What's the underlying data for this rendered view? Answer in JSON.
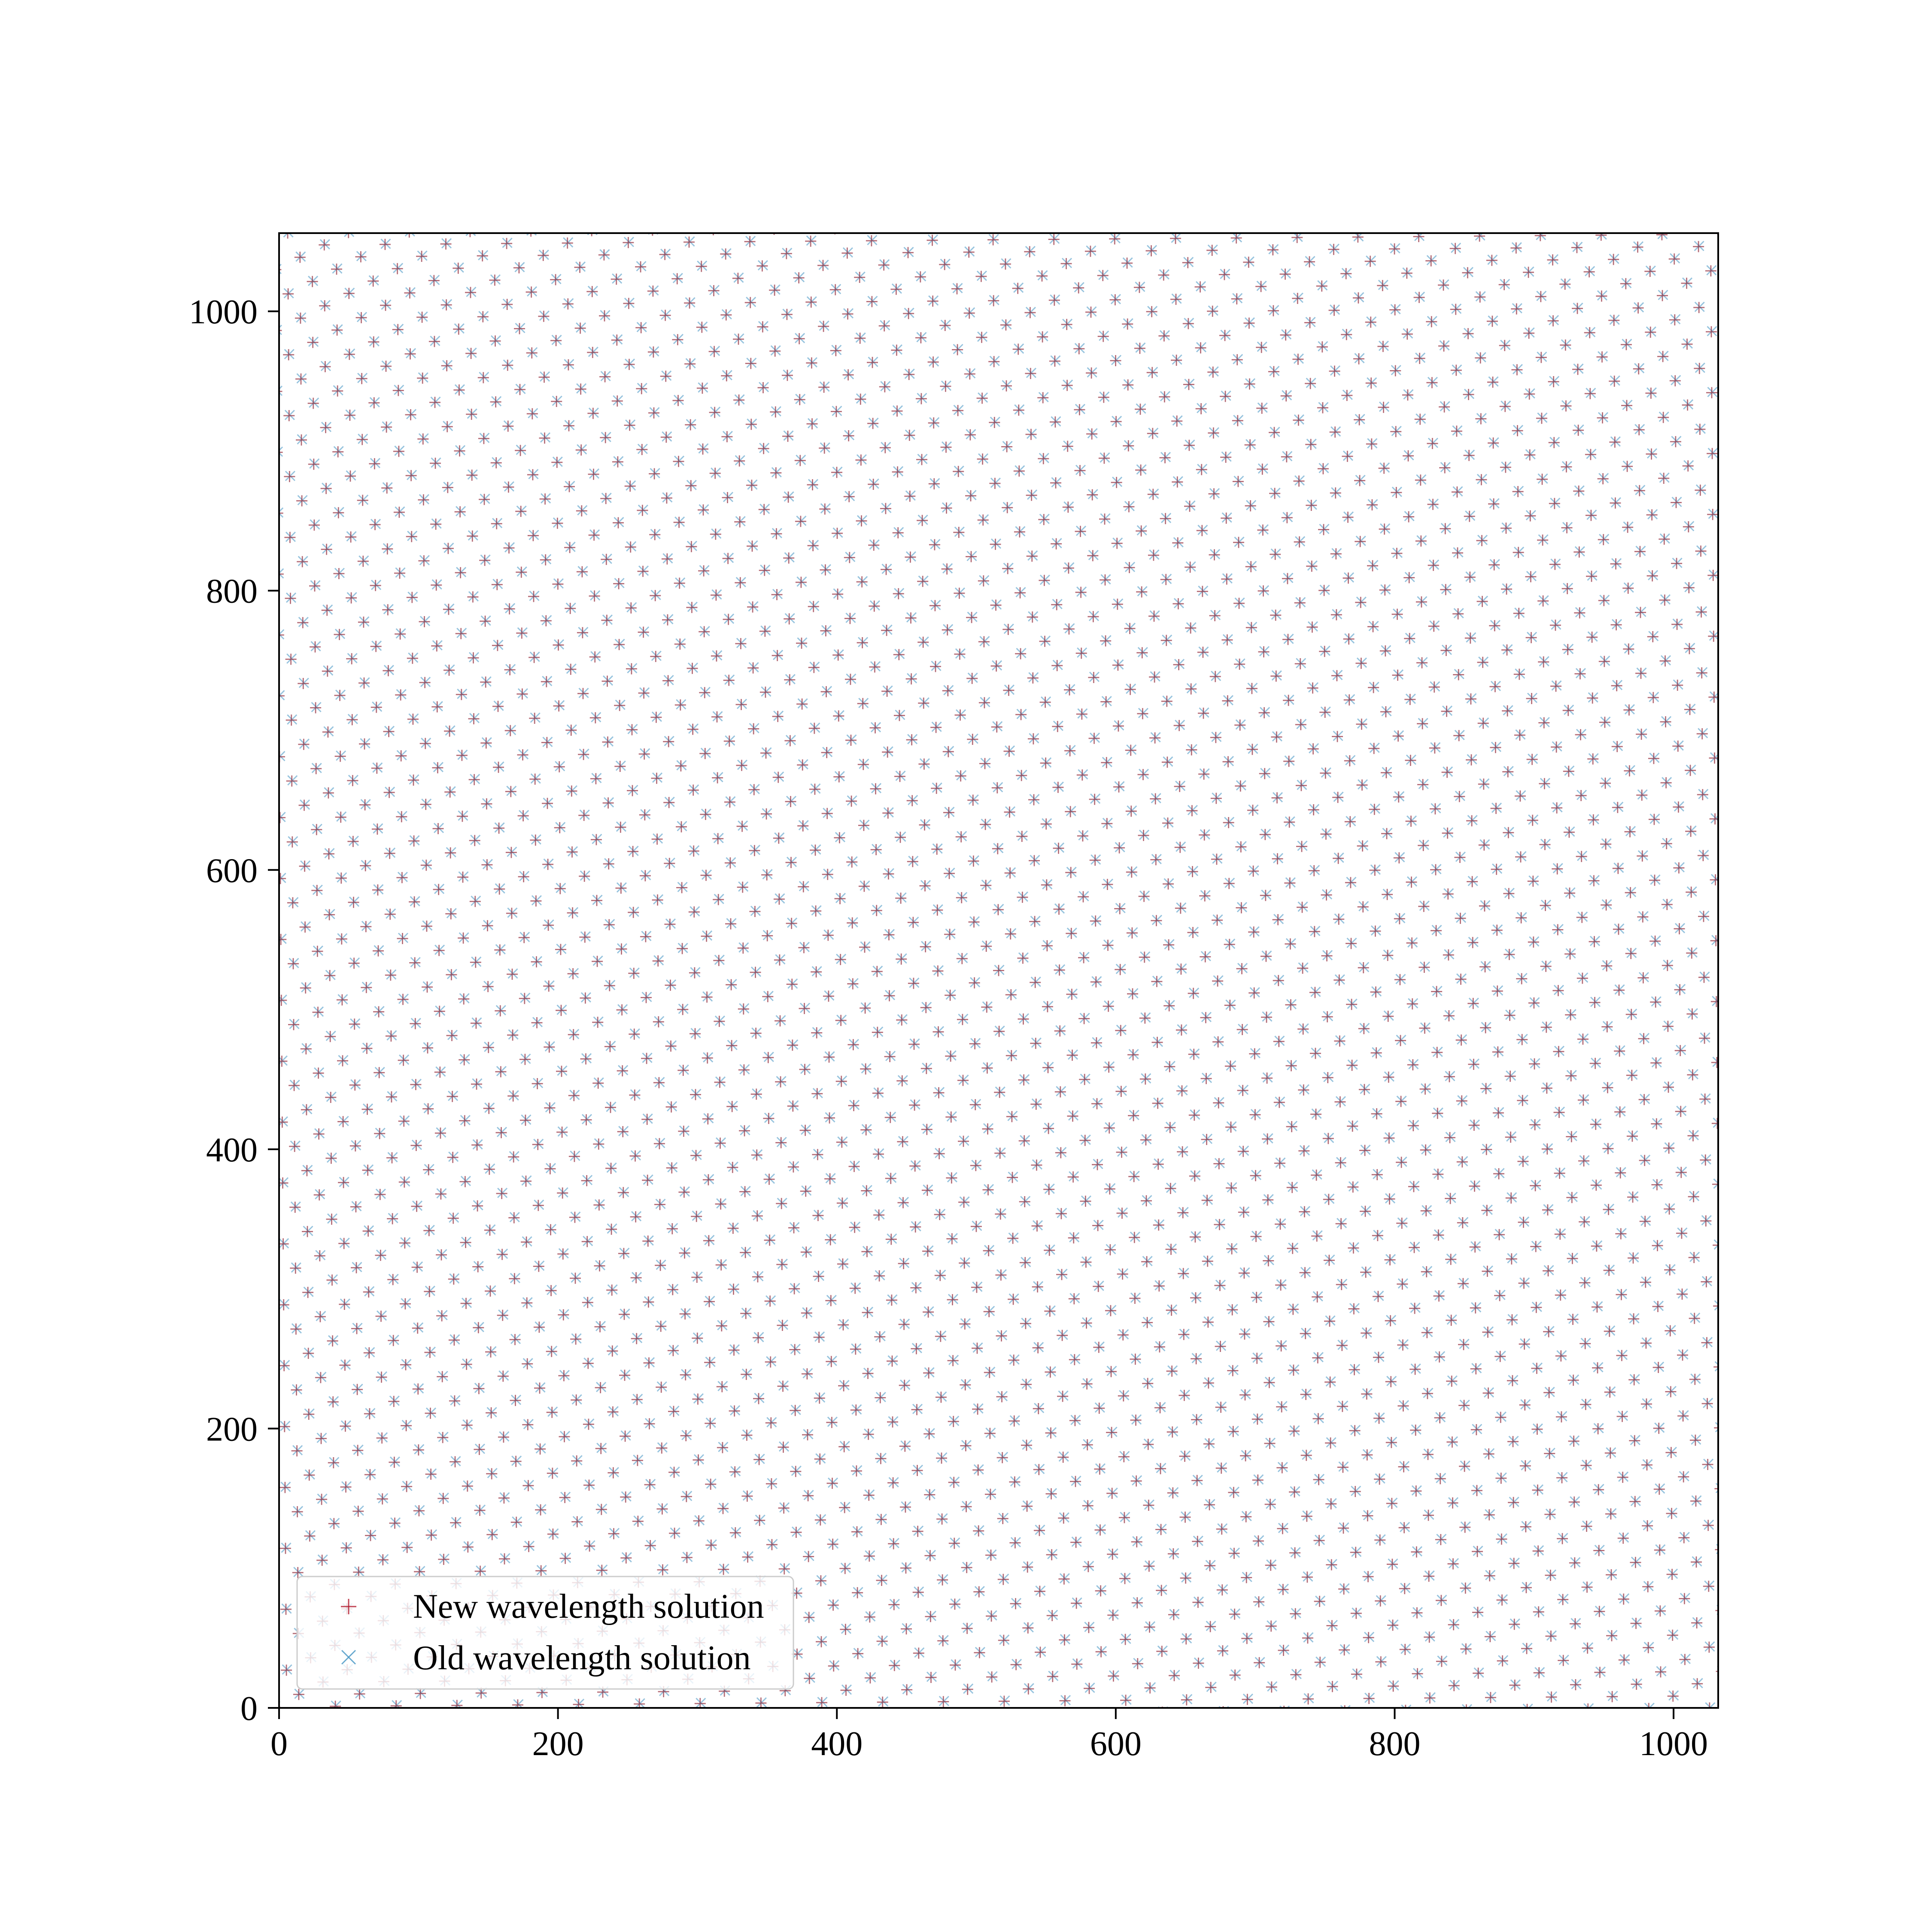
{
  "chart_data": {
    "type": "scatter",
    "title": "",
    "xlabel": "",
    "ylabel": "",
    "xlim": [
      0,
      1032
    ],
    "ylim": [
      0,
      1056
    ],
    "xticks": [
      0,
      200,
      400,
      600,
      800,
      1000
    ],
    "yticks": [
      0,
      200,
      400,
      600,
      800,
      1000
    ],
    "xtick_labels": [
      "0",
      "200",
      "400",
      "600",
      "800",
      "1000"
    ],
    "ytick_labels": [
      "0",
      "200",
      "400",
      "600",
      "800",
      "1000"
    ],
    "grid": false,
    "legend_position": "lower-left",
    "pattern": {
      "description_free_lattice": true,
      "spacing": 19.5,
      "angle_deg": 27,
      "coverage": "entire plot area"
    },
    "series": [
      {
        "name": "New wavelength solution",
        "marker": "plus",
        "color": "#b2182b"
      },
      {
        "name": "Old wavelength solution",
        "marker": "x",
        "color": "#4393c3"
      }
    ]
  }
}
